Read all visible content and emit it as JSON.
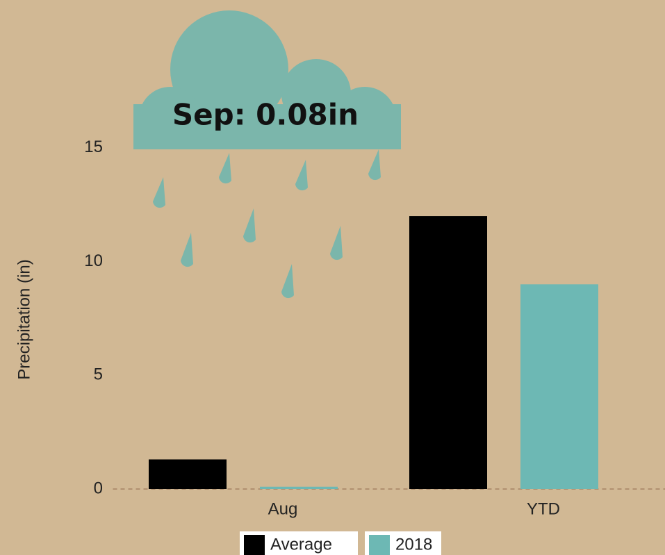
{
  "chart_data": {
    "type": "bar",
    "annotation": "Sep: 0.08in",
    "y_label": "Precipitation (in)",
    "categories": [
      "Aug",
      "YTD"
    ],
    "series": [
      {
        "name": "Average",
        "color": "#000000",
        "values": [
          1.3,
          12
        ]
      },
      {
        "name": "2018",
        "color": "#6db8b4",
        "values": [
          0.1,
          9
        ]
      }
    ],
    "ylim": [
      0,
      21.5
    ],
    "yticks": [
      0,
      5,
      10,
      15
    ],
    "legend": "bottom"
  }
}
